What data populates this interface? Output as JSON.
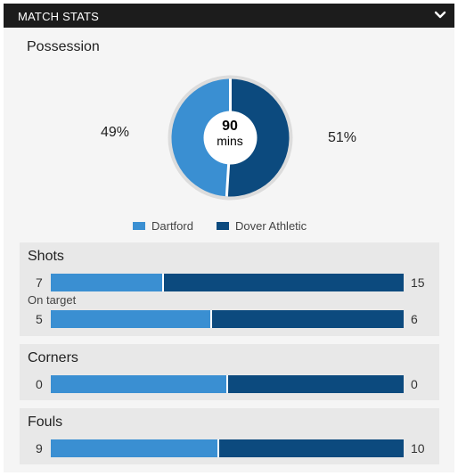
{
  "header": {
    "title": "MATCH STATS",
    "toggle_icon": "chevron-down-icon"
  },
  "possession": {
    "title": "Possession",
    "home_pct": "49%",
    "away_pct": "51%",
    "home_value": 49,
    "away_value": 51,
    "center_value": "90",
    "center_unit": "mins"
  },
  "colors": {
    "home": "#3a8fd2",
    "away": "#0c4a7e"
  },
  "legend": {
    "home": "Dartford",
    "away": "Dover Athletic"
  },
  "stats": {
    "shots": {
      "title": "Shots",
      "total": {
        "home": "7",
        "away": "15"
      },
      "on_target_label": "On target",
      "on_target": {
        "home": "5",
        "away": "6"
      }
    },
    "corners": {
      "title": "Corners",
      "total": {
        "home": "0",
        "away": "0"
      }
    },
    "fouls": {
      "title": "Fouls",
      "total": {
        "home": "9",
        "away": "10"
      }
    }
  }
}
